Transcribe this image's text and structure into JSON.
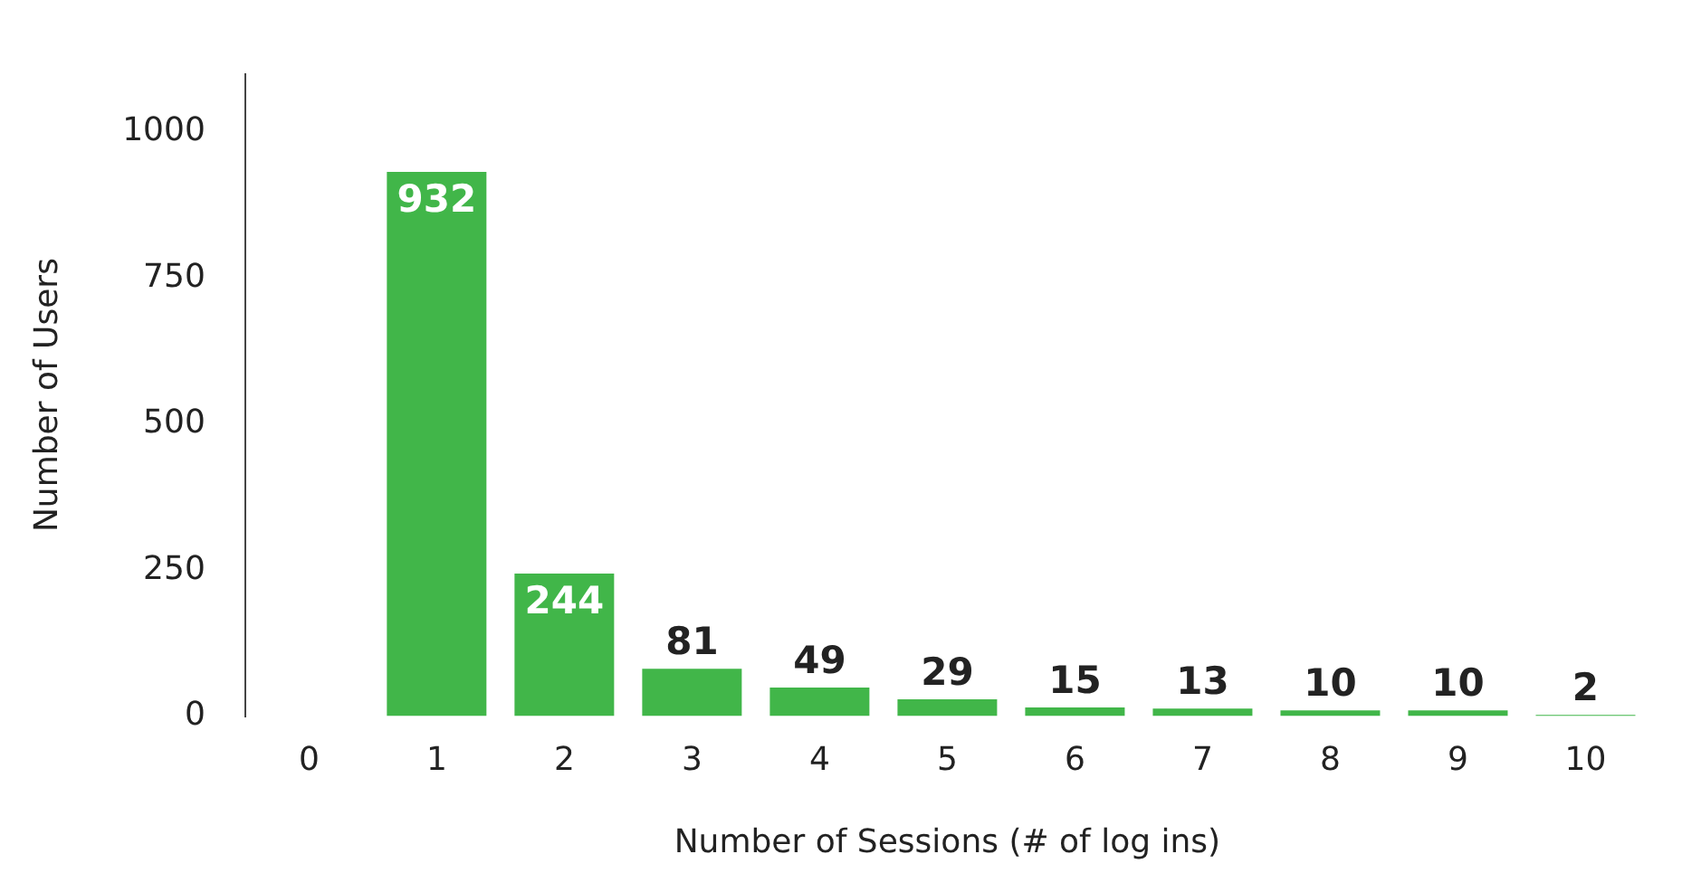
{
  "chart_data": {
    "type": "bar",
    "xlabel": "Number of Sessions (# of log ins)",
    "ylabel": "Number of Users",
    "categories": [
      "0",
      "1",
      "2",
      "3",
      "4",
      "5",
      "6",
      "7",
      "8",
      "9",
      "10"
    ],
    "values": [
      0,
      932,
      244,
      81,
      49,
      29,
      15,
      13,
      10,
      10,
      2
    ],
    "value_labels": [
      null,
      "932",
      "244",
      "81",
      "49",
      "29",
      "15",
      "13",
      "10",
      "10",
      "2"
    ],
    "color": "#41b649",
    "ylim": [
      0,
      1100
    ],
    "yticks": [
      0,
      250,
      500,
      750,
      1000
    ],
    "grid": false,
    "legend": false
  }
}
